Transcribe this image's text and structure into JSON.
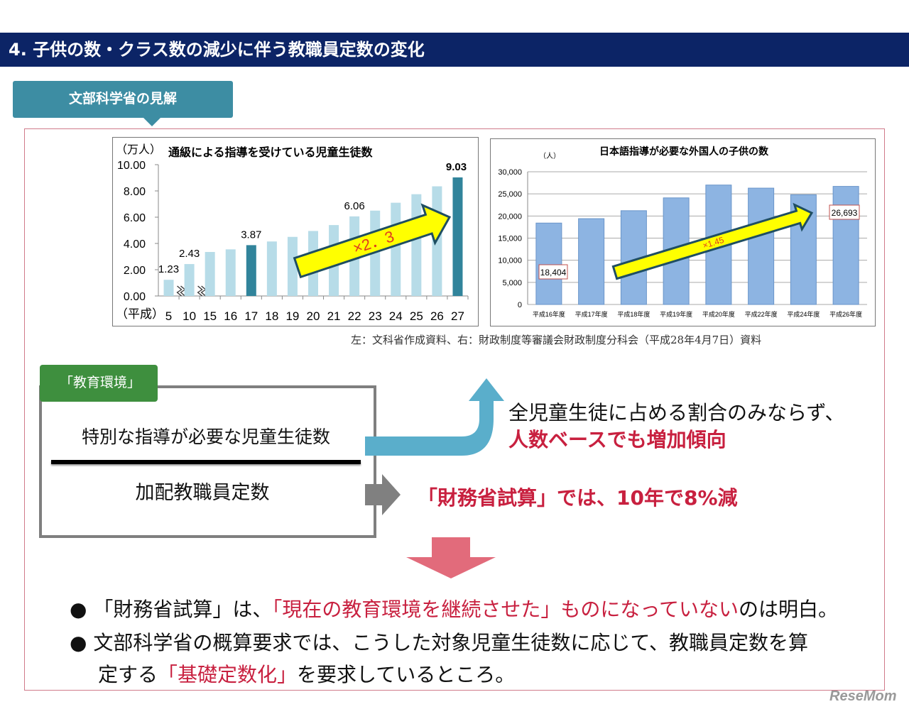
{
  "header": {
    "title": "4. 子供の数・クラス数の減少に伴う教職員定数の変化"
  },
  "section_tag": "文部科学省の見解",
  "chart_data": [
    {
      "type": "bar",
      "title": "通級による指導を受けている児童生徒数",
      "ylabel": "（万人）",
      "xlabel": "（平成）",
      "categories": [
        "5",
        "10",
        "15",
        "16",
        "17",
        "18",
        "19",
        "20",
        "21",
        "22",
        "23",
        "24",
        "25",
        "26",
        "27"
      ],
      "values": [
        1.23,
        2.43,
        3.35,
        3.55,
        3.87,
        4.15,
        4.5,
        4.95,
        5.4,
        6.06,
        6.5,
        7.1,
        7.75,
        8.35,
        9.03
      ],
      "data_labels": {
        "5": "1.23",
        "10": "2.43",
        "17": "3.87",
        "22": "6.06",
        "27": "9.03"
      },
      "highlight": [
        "17",
        "27"
      ],
      "ylim": [
        0,
        10
      ],
      "yticks": [
        "0.00",
        "2.00",
        "4.00",
        "6.00",
        "8.00",
        "10.00"
      ],
      "annotation": "×2．3",
      "axis_break_after": [
        "5",
        "10"
      ],
      "colors": {
        "bar": "#b7dce8",
        "highlight": "#31849b",
        "arrow": "#ffff00",
        "arrow_text": "#e03c1e"
      }
    },
    {
      "type": "bar",
      "title": "日本語指導が必要な外国人の子供の数",
      "ylabel": "（人）",
      "categories": [
        "平成16年度",
        "平成17年度",
        "平成18年度",
        "平成19年度",
        "平成20年度",
        "平成22年度",
        "平成24年度",
        "平成26年度"
      ],
      "values": [
        18404,
        19400,
        21200,
        24100,
        27000,
        26300,
        24800,
        26693
      ],
      "data_labels": {
        "平成16年度": "18,404",
        "平成26年度": "26,693"
      },
      "ylim": [
        0,
        30000
      ],
      "yticks": [
        "0",
        "5,000",
        "10,000",
        "15,000",
        "20,000",
        "25,000",
        "30,000"
      ],
      "grid": true,
      "annotation": "×1.45",
      "colors": {
        "bar": "#8db4e2",
        "arrow": "#ffff00",
        "arrow_text": "#e03c1e"
      }
    }
  ],
  "source": "左：文科省作成資料、右：財政制度等審議会財政制度分科会（平成28年4月7日）資料",
  "env": {
    "tag": "「教育環境」",
    "numerator": "特別な指導が必要な児童生徒数",
    "denominator": "加配教職員定数"
  },
  "right": {
    "line1": "全児童生徒に占める割合のみならず、",
    "line2": "人数ベースでも増加傾向",
    "line3": "「財務省試算」では、10年で8%減"
  },
  "bullets": [
    {
      "a": "「財務省試算」は、",
      "b": "「現在の教育環境を継続させた」ものになっていない",
      "c": "のは明白。"
    },
    {
      "a": "文部科学省の概算要求では、こうした対象児童生徒数に応じて、教職員定数を算"
    },
    {
      "a": "定する",
      "b": "「基礎定数化」",
      "c": "を要求しているところ。"
    }
  ],
  "logo": "ReseMom"
}
